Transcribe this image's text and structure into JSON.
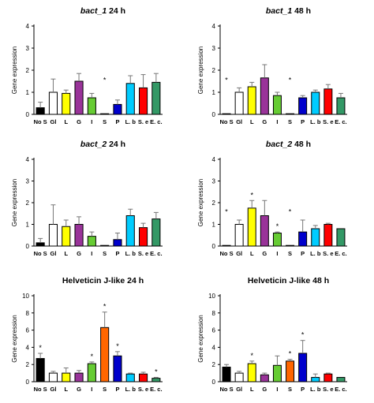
{
  "categories": [
    "No S",
    "Gl",
    "L",
    "G",
    "I",
    "S",
    "P",
    "L. b",
    "S. e",
    "E. c."
  ],
  "colors": [
    "#000000",
    "#ffffff",
    "#ffff00",
    "#993399",
    "#66cc33",
    "#ff6600",
    "#0000cc",
    "#00ccff",
    "#ff0000",
    "#339966"
  ],
  "chart_data": [
    {
      "type": "bar",
      "title_gene": "bact_1",
      "title_time": " 24 h",
      "title_italic": true,
      "ylabel": "Gene expression",
      "ylim": [
        0,
        4
      ],
      "yticks": [
        0,
        1,
        2,
        3,
        4
      ],
      "categories": [
        "No S",
        "Gl",
        "L",
        "G",
        "I",
        "S",
        "P",
        "L. b",
        "S. e",
        "E. c."
      ],
      "values": [
        0.3,
        1.0,
        0.95,
        1.5,
        0.75,
        0.02,
        0.45,
        1.4,
        1.2,
        1.45
      ],
      "errors": [
        0.25,
        0.6,
        0.15,
        0.35,
        0.2,
        0.0,
        0.2,
        0.35,
        0.6,
        0.4
      ],
      "significant": [
        false,
        false,
        false,
        false,
        false,
        true,
        false,
        false,
        false,
        false
      ]
    },
    {
      "type": "bar",
      "title_gene": "bact_1",
      "title_time": " 48 h",
      "title_italic": true,
      "ylabel": "Gene expression",
      "ylim": [
        0,
        4
      ],
      "yticks": [
        0,
        1,
        2,
        3,
        4
      ],
      "categories": [
        "No S",
        "Gl",
        "L",
        "G",
        "I",
        "S",
        "P",
        "L. b",
        "S. e",
        "E. c."
      ],
      "values": [
        0.02,
        1.0,
        1.25,
        1.65,
        0.85,
        0.02,
        0.75,
        1.0,
        1.15,
        0.75
      ],
      "errors": [
        0.0,
        0.2,
        0.2,
        0.6,
        0.15,
        0.0,
        0.1,
        0.1,
        0.2,
        0.2
      ],
      "significant": [
        true,
        false,
        false,
        false,
        false,
        true,
        false,
        false,
        false,
        false
      ]
    },
    {
      "type": "bar",
      "title_gene": "bact_2",
      "title_time": " 24 h",
      "title_italic": true,
      "ylabel": "Gene expression",
      "ylim": [
        0,
        4
      ],
      "yticks": [
        0,
        1,
        2,
        3,
        4
      ],
      "categories": [
        "No S",
        "Gl",
        "L",
        "G",
        "I",
        "S",
        "P",
        "L. b",
        "S. e",
        "E. c."
      ],
      "values": [
        0.15,
        1.0,
        0.9,
        1.0,
        0.45,
        0.02,
        0.3,
        1.4,
        0.85,
        1.25
      ],
      "errors": [
        0.2,
        0.9,
        0.3,
        0.35,
        0.2,
        0.0,
        0.3,
        0.3,
        0.2,
        0.3
      ],
      "significant": [
        false,
        false,
        false,
        false,
        false,
        false,
        false,
        false,
        false,
        false
      ]
    },
    {
      "type": "bar",
      "title_gene": "bact_2",
      "title_time": " 48 h",
      "title_italic": true,
      "ylabel": "Gene expression",
      "ylim": [
        0,
        4
      ],
      "yticks": [
        0,
        1,
        2,
        3,
        4
      ],
      "categories": [
        "No S",
        "Gl",
        "L",
        "G",
        "I",
        "S",
        "P",
        "L. b",
        "S. e",
        "E. c."
      ],
      "values": [
        0.02,
        1.0,
        1.75,
        1.4,
        0.6,
        0.02,
        0.65,
        0.8,
        1.0,
        0.8
      ],
      "errors": [
        0.0,
        0.2,
        0.35,
        0.7,
        0.05,
        0.0,
        0.55,
        0.15,
        0.05,
        0.0
      ],
      "significant": [
        true,
        false,
        true,
        false,
        true,
        true,
        false,
        false,
        false,
        false
      ]
    },
    {
      "type": "bar",
      "title_gene": "Helveticin J-like",
      "title_time": " 24 h",
      "title_italic": false,
      "ylabel": "Gene expression",
      "ylim": [
        0,
        10
      ],
      "yticks": [
        0,
        2,
        4,
        6,
        8,
        10
      ],
      "categories": [
        "No S",
        "Gl",
        "L",
        "G",
        "I",
        "S",
        "P",
        "L. b",
        "S. e",
        "E. c."
      ],
      "values": [
        2.7,
        1.0,
        1.0,
        1.0,
        2.1,
        6.3,
        3.0,
        0.9,
        0.9,
        0.4
      ],
      "errors": [
        0.6,
        0.2,
        0.6,
        0.3,
        0.2,
        1.8,
        0.5,
        0.1,
        0.2,
        0.1
      ],
      "significant": [
        true,
        false,
        false,
        false,
        true,
        true,
        true,
        false,
        false,
        true
      ]
    },
    {
      "type": "bar",
      "title_gene": "Helveticin J-like",
      "title_time": " 48 h",
      "title_italic": false,
      "ylabel": "Gene expression",
      "ylim": [
        0,
        10
      ],
      "yticks": [
        0,
        2,
        4,
        6,
        8,
        10
      ],
      "categories": [
        "No S",
        "Gl",
        "L",
        "G",
        "I",
        "S",
        "P",
        "L. b",
        "S. e",
        "E. c."
      ],
      "values": [
        1.7,
        1.0,
        2.1,
        0.8,
        1.9,
        2.4,
        3.3,
        0.5,
        0.9,
        0.5
      ],
      "errors": [
        0.3,
        0.2,
        0.3,
        0.2,
        1.1,
        0.2,
        1.5,
        0.4,
        0.1,
        0.0
      ],
      "significant": [
        false,
        false,
        true,
        false,
        false,
        true,
        true,
        false,
        false,
        false
      ]
    }
  ]
}
